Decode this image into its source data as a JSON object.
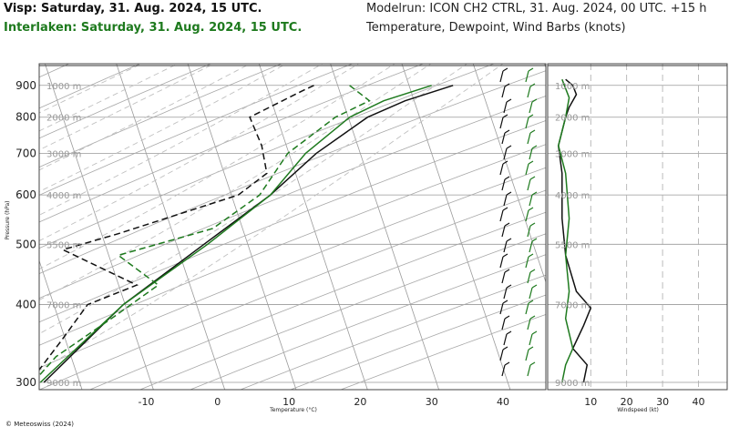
{
  "header": {
    "left_line1": "Visp: Saturday, 31. Aug. 2024, 15 UTC.",
    "left_line2": "Interlaken: Saturday, 31. Aug. 2024, 15 UTC.",
    "right_line1": "Modelrun: ICON CH2 CTRL, 31. Aug. 2024, 00 UTC. +15 h",
    "right_line2": "Temperature, Dewpoint, Wind Barbs (knots)"
  },
  "footer": {
    "copyright": "© Meteoswiss (2024)"
  },
  "colors": {
    "visp": "#111111",
    "interlaken": "#1e7a1e",
    "grid": "#9a9a9a",
    "dashed_grid": "#c0c0c0"
  },
  "chart_data": [
    {
      "type": "line",
      "subtype": "skew-T log-p sounding",
      "title": "Temperature, Dewpoint, Wind Barbs (knots)",
      "xlabel": "Temperature (°C)",
      "ylabel": "Pressure (hPa)",
      "x_ticks": [
        -10,
        0,
        10,
        20,
        30,
        40
      ],
      "y_ticks": [
        300,
        400,
        500,
        600,
        700,
        800,
        900
      ],
      "altitude_labels": [
        "9000 m",
        "7000 m",
        "5500 m",
        "4000 m",
        "3000 m",
        "2000 m",
        "1000 m"
      ],
      "y_scale": "log (inverted)",
      "xlim": [
        -25,
        46
      ],
      "ylim": [
        975,
        292
      ],
      "series": [
        {
          "name": "Visp temperature",
          "color": "#111111",
          "style": "solid",
          "points": [
            [
              33,
              900
            ],
            [
              27,
              850
            ],
            [
              22.5,
              800
            ],
            [
              17,
              700
            ],
            [
              12.5,
              600
            ],
            [
              5.5,
              500
            ],
            [
              -3,
              400
            ],
            [
              -10.5,
              300
            ]
          ]
        },
        {
          "name": "Visp dewpoint",
          "color": "#111111",
          "style": "dashed",
          "points": [
            [
              13.5,
              900
            ],
            [
              12,
              880
            ],
            [
              6,
              800
            ],
            [
              9,
              720
            ],
            [
              11,
              650
            ],
            [
              8,
              600
            ],
            [
              -7,
              520
            ],
            [
              -14,
              490
            ],
            [
              -2,
              430
            ],
            [
              -8,
              400
            ],
            [
              -10,
              350
            ],
            [
              -12.5,
              300
            ]
          ]
        },
        {
          "name": "Interlaken temperature",
          "color": "#1e7a1e",
          "style": "solid",
          "points": [
            [
              30,
              900
            ],
            [
              24,
              850
            ],
            [
              20,
              800
            ],
            [
              15.5,
              700
            ],
            [
              12.5,
              600
            ],
            [
              6,
              500
            ],
            [
              -3,
              400
            ],
            [
              -11,
              300
            ]
          ]
        },
        {
          "name": "Interlaken dewpoint",
          "color": "#1e7a1e",
          "style": "dashed",
          "points": [
            [
              18.5,
              900
            ],
            [
              22,
              850
            ],
            [
              18,
              800
            ],
            [
              13,
              700
            ],
            [
              11,
              600
            ],
            [
              6,
              530
            ],
            [
              -6,
              480
            ],
            [
              1,
              430
            ],
            [
              -4,
              380
            ],
            [
              -10,
              330
            ],
            [
              -12,
              300
            ]
          ]
        }
      ]
    },
    {
      "type": "line",
      "subtype": "wind speed profile",
      "xlabel": "Windspeed (kt)",
      "x_ticks": [
        10,
        20,
        30,
        40
      ],
      "y_ticks": [
        300,
        400,
        500,
        600,
        700,
        800,
        900
      ],
      "altitude_labels": [
        "9000 m",
        "7000 m",
        "5500 m",
        "4000 m",
        "3000 m",
        "2000 m",
        "1000 m"
      ],
      "xlim": [
        -2,
        48
      ],
      "ylim": [
        975,
        292
      ],
      "series": [
        {
          "name": "Visp windspeed",
          "color": "#111111",
          "style": "solid",
          "points": [
            [
              3,
              920
            ],
            [
              5,
              900
            ],
            [
              6,
              870
            ],
            [
              4,
              830
            ],
            [
              3,
              800
            ],
            [
              1,
              720
            ],
            [
              2,
              650
            ],
            [
              2,
              550
            ],
            [
              3,
              480
            ],
            [
              6,
              420
            ],
            [
              10,
              395
            ],
            [
              8,
              370
            ],
            [
              5,
              340
            ],
            [
              9,
              320
            ],
            [
              8,
              300
            ]
          ]
        },
        {
          "name": "Interlaken windspeed",
          "color": "#1e7a1e",
          "style": "solid",
          "points": [
            [
              2,
              920
            ],
            [
              4,
              860
            ],
            [
              3,
              800
            ],
            [
              1,
              720
            ],
            [
              3,
              650
            ],
            [
              4,
              550
            ],
            [
              3,
              480
            ],
            [
              4,
              420
            ],
            [
              3,
              380
            ],
            [
              5,
              340
            ],
            [
              3,
              320
            ],
            [
              2,
              300
            ]
          ]
        }
      ]
    }
  ]
}
